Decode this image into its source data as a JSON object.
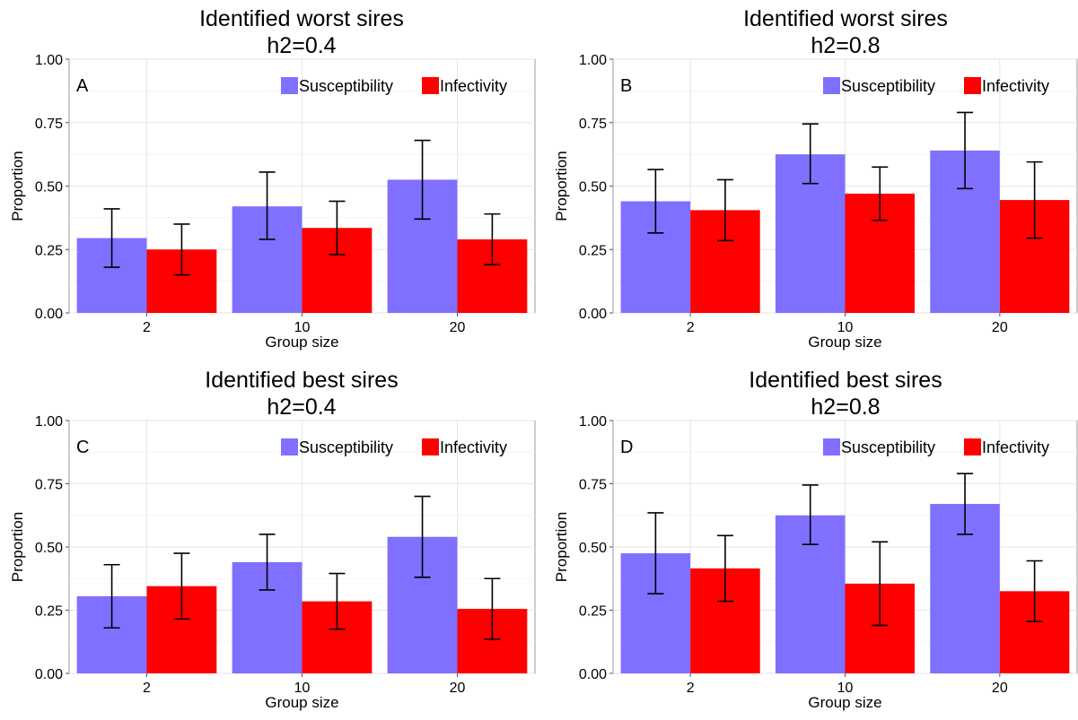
{
  "legend_items": [
    {
      "label": "Susceptibility",
      "color": "#8070ff"
    },
    {
      "label": "Infectivity",
      "color": "#ff0000"
    }
  ],
  "chart_data": [
    {
      "type": "bar",
      "panel_label": "A",
      "title": "Identified worst sires",
      "subtitle": "h2=0.4",
      "xlabel": "Group size",
      "ylabel": "Proportion",
      "ylim": [
        0,
        1
      ],
      "yticks": [
        "0.00",
        "0.25",
        "0.50",
        "0.75",
        "1.00"
      ],
      "grid": true,
      "legend_position": "top-right",
      "categories": [
        "2",
        "10",
        "20"
      ],
      "series": [
        {
          "name": "Susceptibility",
          "color": "#8070ff",
          "values": [
            0.295,
            0.42,
            0.525
          ],
          "err_low": [
            0.18,
            0.29,
            0.37
          ],
          "err_high": [
            0.41,
            0.555,
            0.68
          ]
        },
        {
          "name": "Infectivity",
          "color": "#ff0000",
          "values": [
            0.25,
            0.335,
            0.29
          ],
          "err_low": [
            0.15,
            0.23,
            0.19
          ],
          "err_high": [
            0.35,
            0.44,
            0.39
          ]
        }
      ]
    },
    {
      "type": "bar",
      "panel_label": "B",
      "title": "Identified worst sires",
      "subtitle": "h2=0.8",
      "xlabel": "Group size",
      "ylabel": "Proportion",
      "ylim": [
        0,
        1
      ],
      "yticks": [
        "0.00",
        "0.25",
        "0.50",
        "0.75",
        "1.00"
      ],
      "grid": true,
      "legend_position": "top-right",
      "categories": [
        "2",
        "10",
        "20"
      ],
      "series": [
        {
          "name": "Susceptibility",
          "color": "#8070ff",
          "values": [
            0.44,
            0.625,
            0.64
          ],
          "err_low": [
            0.315,
            0.51,
            0.49
          ],
          "err_high": [
            0.565,
            0.745,
            0.79
          ]
        },
        {
          "name": "Infectivity",
          "color": "#ff0000",
          "values": [
            0.405,
            0.47,
            0.445
          ],
          "err_low": [
            0.285,
            0.365,
            0.295
          ],
          "err_high": [
            0.525,
            0.575,
            0.595
          ]
        }
      ]
    },
    {
      "type": "bar",
      "panel_label": "C",
      "title": "Identified best sires",
      "subtitle": "h2=0.4",
      "xlabel": "Group size",
      "ylabel": "Proportion",
      "ylim": [
        0,
        1
      ],
      "yticks": [
        "0.00",
        "0.25",
        "0.50",
        "0.75",
        "1.00"
      ],
      "grid": true,
      "legend_position": "top-right",
      "categories": [
        "2",
        "10",
        "20"
      ],
      "series": [
        {
          "name": "Susceptibility",
          "color": "#8070ff",
          "values": [
            0.305,
            0.44,
            0.54
          ],
          "err_low": [
            0.18,
            0.33,
            0.38
          ],
          "err_high": [
            0.43,
            0.55,
            0.7
          ]
        },
        {
          "name": "Infectivity",
          "color": "#ff0000",
          "values": [
            0.345,
            0.285,
            0.255
          ],
          "err_low": [
            0.215,
            0.175,
            0.135
          ],
          "err_high": [
            0.475,
            0.395,
            0.375
          ]
        }
      ]
    },
    {
      "type": "bar",
      "panel_label": "D",
      "title": "Identified best sires",
      "subtitle": "h2=0.8",
      "xlabel": "Group size",
      "ylabel": "Proportion",
      "ylim": [
        0,
        1
      ],
      "yticks": [
        "0.00",
        "0.25",
        "0.50",
        "0.75",
        "1.00"
      ],
      "grid": true,
      "legend_position": "top-right",
      "categories": [
        "2",
        "10",
        "20"
      ],
      "series": [
        {
          "name": "Susceptibility",
          "color": "#8070ff",
          "values": [
            0.475,
            0.625,
            0.67
          ],
          "err_low": [
            0.315,
            0.51,
            0.55
          ],
          "err_high": [
            0.635,
            0.745,
            0.79
          ]
        },
        {
          "name": "Infectivity",
          "color": "#ff0000",
          "values": [
            0.415,
            0.355,
            0.325
          ],
          "err_low": [
            0.285,
            0.19,
            0.205
          ],
          "err_high": [
            0.545,
            0.52,
            0.445
          ]
        }
      ]
    }
  ]
}
